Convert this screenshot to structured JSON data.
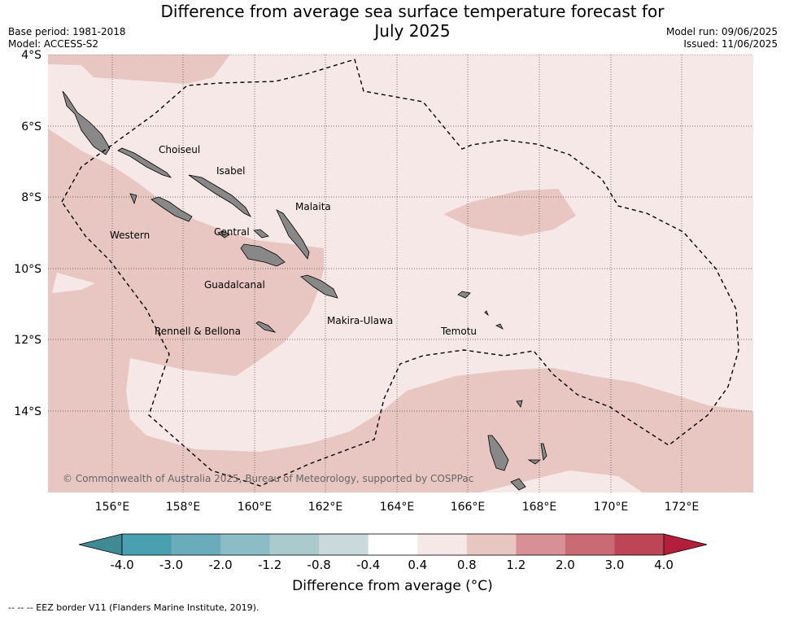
{
  "title_line1": "Difference from average sea surface temperature forecast for",
  "title_line2": "July 2025",
  "base_period": "Base period: 1981-2018",
  "model": "Model: ACCESS-S2",
  "model_run": "Model run: 09/06/2025",
  "issued": "Issued: 11/06/2025",
  "copyright": "© Commonwealth of Australia 2025, Bureau of Meteorology, supported by COSPPac",
  "footer": "--  --  -- EEZ border V11 (Flanders Marine Institute, 2019).",
  "colors": {
    "land": "#888888",
    "anomaly_0_4_to_0_8": "#f5e8e6",
    "anomaly_0_8_to_1_2": "#e8c7c2",
    "eez": "#000000"
  },
  "map": {
    "lat_labels": [
      "4°S",
      "6°S",
      "8°S",
      "10°S",
      "12°S",
      "14°S"
    ],
    "lon_labels": [
      "156°E",
      "158°E",
      "160°E",
      "162°E",
      "164°E",
      "166°E",
      "168°E",
      "170°E",
      "172°E"
    ],
    "regions": [
      {
        "name": "Choiseul"
      },
      {
        "name": "Isabel"
      },
      {
        "name": "Malaita"
      },
      {
        "name": "Western"
      },
      {
        "name": "Central"
      },
      {
        "name": "Guadalcanal"
      },
      {
        "name": "Makira-Ulawa"
      },
      {
        "name": "Rennell & Bellona"
      },
      {
        "name": "Temotu"
      }
    ]
  },
  "colorbar": {
    "label": "Difference from average (°C)",
    "ticks": [
      "-4.0",
      "-3.0",
      "-2.0",
      "-1.2",
      "-0.8",
      "-0.4",
      "0.4",
      "0.8",
      "1.2",
      "2.0",
      "3.0",
      "4.0"
    ],
    "colors": [
      "#4a9fb0",
      "#6aacbb",
      "#8cbcc5",
      "#abcace",
      "#c9d9dc",
      "#ffffff",
      "#f5e8e6",
      "#e8c7c2",
      "#d98f96",
      "#c96a74",
      "#bd4656"
    ],
    "under_color": "#3f8a93",
    "over_color": "#b31f3a"
  }
}
